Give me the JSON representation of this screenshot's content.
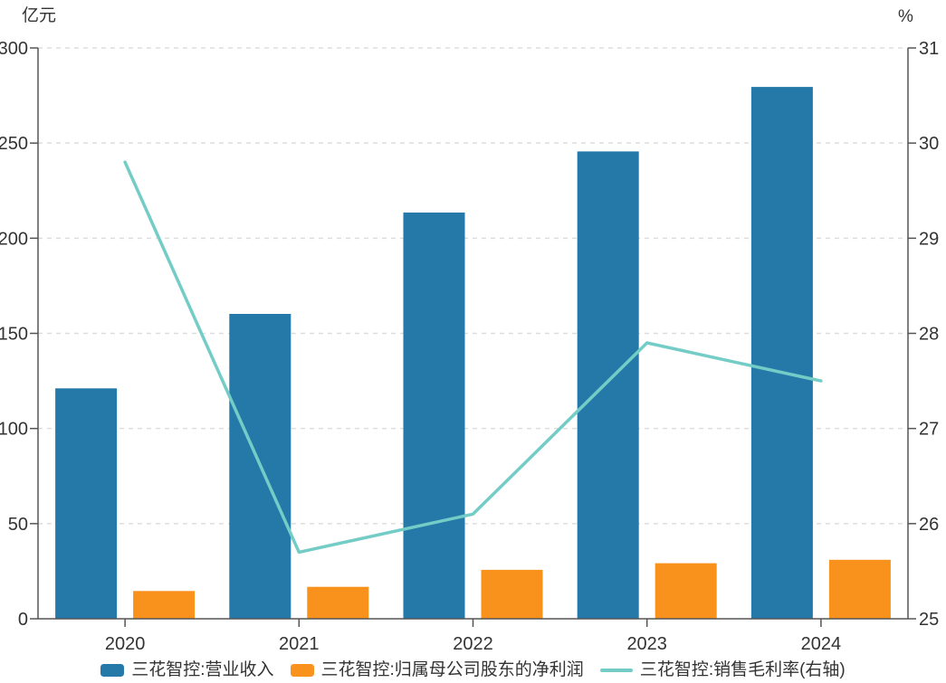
{
  "colors": {
    "background": "#FFFFFF",
    "grid": "#DDDDDD",
    "axis": "#555555",
    "text": "#333333",
    "bar_revenue": "#2579A8",
    "bar_profit": "#F8921D",
    "line_margin": "#74CCC7"
  },
  "chart_data": {
    "type": "combo",
    "subtype": [
      "bar",
      "bar",
      "line"
    ],
    "categories": [
      "2020",
      "2021",
      "2022",
      "2023",
      "2024"
    ],
    "series": [
      {
        "name": "三花智控:营业收入",
        "type": "bar",
        "axis": "left",
        "color": "#2579A8",
        "values": [
          121.1,
          160.2,
          213.5,
          245.6,
          279.5
        ]
      },
      {
        "name": "三花智控:归属母公司股东的净利润",
        "type": "bar",
        "axis": "left",
        "color": "#F8921D",
        "values": [
          14.6,
          16.8,
          25.7,
          29.2,
          31.0
        ]
      },
      {
        "name": "三花智控:销售毛利率(右轴)",
        "type": "line",
        "axis": "right",
        "color": "#74CCC7",
        "values": [
          29.8,
          25.7,
          26.1,
          27.9,
          27.5
        ]
      }
    ],
    "left_axis": {
      "unit": "亿元",
      "min": 0,
      "max": 300,
      "step": 50,
      "ticks": [
        "0",
        "50",
        "100",
        "150",
        "200",
        "250",
        "300"
      ]
    },
    "right_axis": {
      "unit": "%",
      "min": 25,
      "max": 31,
      "step": 1,
      "ticks": [
        "25",
        "26",
        "27",
        "28",
        "29",
        "30",
        "31"
      ]
    },
    "grid": true,
    "legend_position": "bottom"
  }
}
